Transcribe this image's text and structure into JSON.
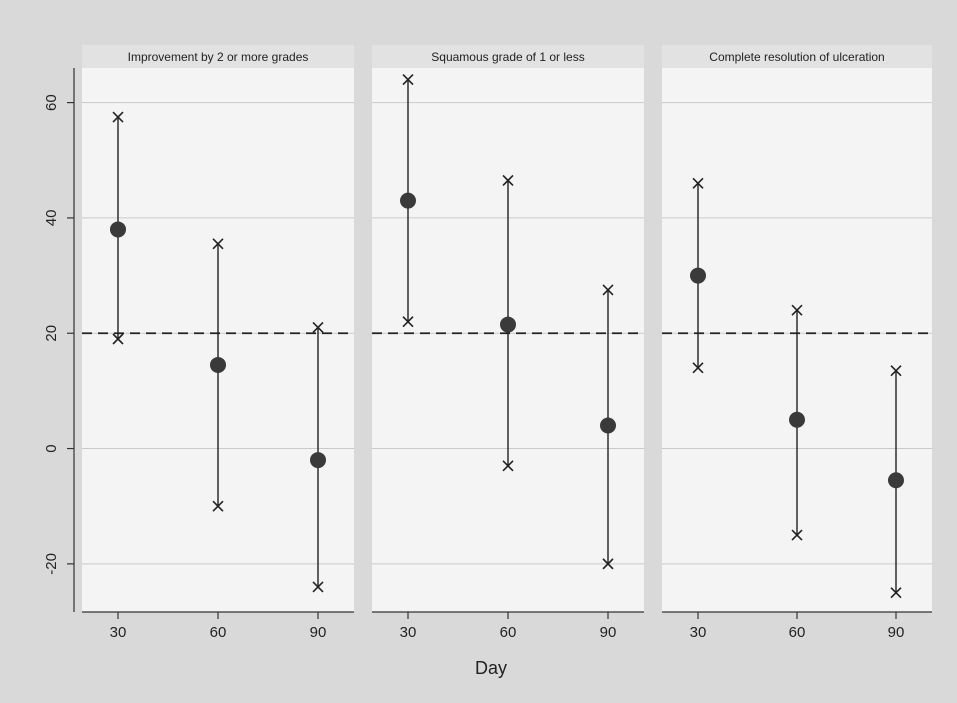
{
  "chart_data": {
    "type": "scatter",
    "subtype": "point estimate with confidence interval, faceted",
    "xlabel": "Day",
    "ylabel": "",
    "ylim": [
      -28,
      66
    ],
    "yticks": [
      -20,
      0,
      20,
      40,
      60
    ],
    "xticks": [
      30,
      60,
      90
    ],
    "reference_line": 20,
    "grid": true,
    "colors": {
      "background": "#d9d9d9",
      "panel": "#f4f4f4",
      "ink": "#222222",
      "gridline": "#c9c9c9"
    },
    "panels": [
      {
        "title": "Improvement by 2 or more grades",
        "points": [
          {
            "x": 30,
            "estimate": 38,
            "lower": 19,
            "upper": 57.5
          },
          {
            "x": 60,
            "estimate": 14.5,
            "lower": -10,
            "upper": 35.5
          },
          {
            "x": 90,
            "estimate": -2,
            "lower": -24,
            "upper": 21
          }
        ]
      },
      {
        "title": "Squamous grade of 1 or less",
        "points": [
          {
            "x": 30,
            "estimate": 43,
            "lower": 22,
            "upper": 64
          },
          {
            "x": 60,
            "estimate": 21.5,
            "lower": -3,
            "upper": 46.5
          },
          {
            "x": 90,
            "estimate": 4,
            "lower": -20,
            "upper": 27.5
          }
        ]
      },
      {
        "title": "Complete resolution of ulceration",
        "points": [
          {
            "x": 30,
            "estimate": 30,
            "lower": 14,
            "upper": 46
          },
          {
            "x": 60,
            "estimate": 5,
            "lower": -15,
            "upper": 24
          },
          {
            "x": 90,
            "estimate": -5.5,
            "lower": -25,
            "upper": 13.5
          }
        ]
      }
    ]
  }
}
